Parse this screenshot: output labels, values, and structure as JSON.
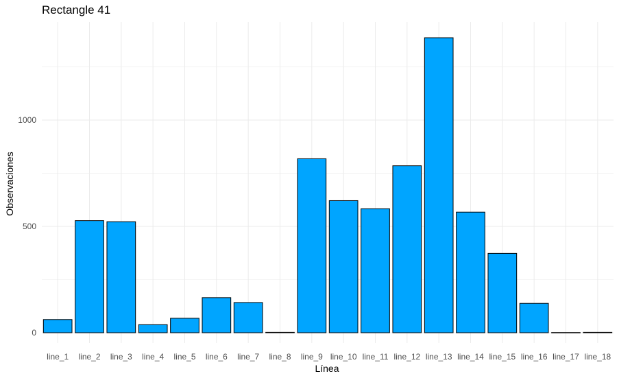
{
  "chart_data": {
    "type": "bar",
    "title": "Rectangle 41",
    "xlabel": "Línea",
    "ylabel": "Observaciones",
    "categories": [
      "line_1",
      "line_2",
      "line_3",
      "line_4",
      "line_5",
      "line_6",
      "line_7",
      "line_8",
      "line_9",
      "line_10",
      "line_11",
      "line_12",
      "line_13",
      "line_14",
      "line_15",
      "line_16",
      "line_17",
      "line_18"
    ],
    "values": [
      62,
      527,
      522,
      38,
      68,
      165,
      142,
      2,
      818,
      621,
      583,
      785,
      1387,
      567,
      373,
      138,
      1,
      2
    ],
    "ylim": [
      0,
      1387
    ],
    "yticks": [
      0,
      500,
      1000
    ],
    "grid": true,
    "colors": {
      "bar_fill": "#00A5FF",
      "bar_stroke": "#000000",
      "grid": "#ebebeb"
    }
  }
}
